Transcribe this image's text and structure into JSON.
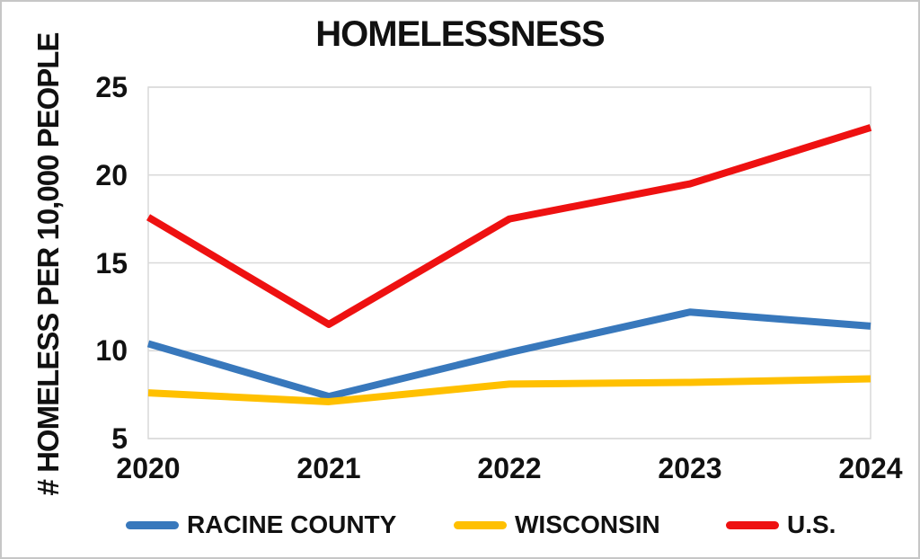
{
  "chart_data": {
    "type": "line",
    "title": "HOMELESSNESS",
    "ylabel": "# HOMELESS PER 10,000 PEOPLE",
    "xlabel": "",
    "categories": [
      "2020",
      "2021",
      "2022",
      "2023",
      "2024"
    ],
    "ylim": [
      5,
      25
    ],
    "yticks": [
      5,
      10,
      15,
      20,
      25
    ],
    "grid": "horizontal",
    "legend_position": "bottom",
    "gridline_color": "#d9d9d9",
    "series": [
      {
        "name": "RACINE COUNTY",
        "color": "#3878bc",
        "values": [
          10.4,
          7.4,
          9.9,
          12.2,
          11.4
        ]
      },
      {
        "name": "WISCONSIN",
        "color": "#ffc000",
        "values": [
          7.6,
          7.1,
          8.1,
          8.2,
          8.4
        ]
      },
      {
        "name": "U.S.",
        "color": "#ee1111",
        "values": [
          17.6,
          11.5,
          17.5,
          19.5,
          22.7
        ]
      }
    ]
  }
}
